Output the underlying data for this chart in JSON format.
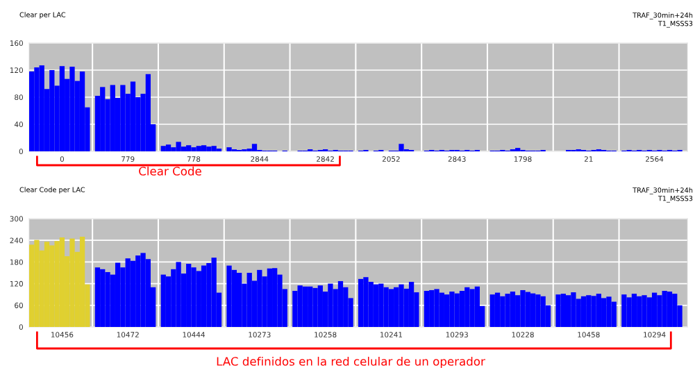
{
  "chart_data": [
    {
      "type": "bar",
      "title": "Clear per LAC",
      "subtitle": "TRAF_30min+24h\nT1_MSSS3",
      "categories": [
        null,
        null,
        null,
        null,
        null,
        null,
        "0",
        null,
        null,
        null,
        null,
        null,
        null,
        null,
        null,
        null,
        null,
        null,
        null,
        "779",
        null,
        null,
        null,
        null,
        null,
        null,
        null,
        null,
        null,
        null,
        null,
        null,
        "778",
        null,
        null,
        null,
        null,
        null,
        null,
        null,
        null,
        null,
        null,
        null,
        null,
        "2844",
        null,
        null,
        null,
        null,
        null,
        null,
        null,
        null,
        null,
        null,
        null,
        null,
        "2842",
        null,
        null,
        null,
        null,
        null,
        null,
        null,
        null,
        null,
        null,
        null,
        null,
        "2052",
        null,
        null,
        null,
        null,
        null,
        null,
        null,
        null,
        null,
        null,
        null,
        null,
        "2843",
        null,
        null,
        null,
        null,
        null,
        null,
        null,
        null,
        null,
        null,
        null,
        null,
        "1798",
        null,
        null,
        null,
        null,
        null,
        null,
        null,
        null,
        null,
        null,
        null,
        null,
        "21",
        null,
        null,
        null,
        null,
        null,
        null,
        null,
        null,
        null,
        null,
        null,
        null,
        "2564",
        null,
        null,
        null,
        null,
        null,
        null
      ],
      "series": [
        {
          "color": "#0000ff",
          "values": [
            118,
            124,
            127,
            92,
            120,
            97,
            126,
            107,
            125,
            104,
            118,
            65,
            null,
            82,
            95,
            77,
            98,
            79,
            98,
            85,
            103,
            80,
            85,
            114,
            40,
            null,
            8,
            10,
            6,
            14,
            7,
            9,
            6,
            8,
            9,
            7,
            8,
            4,
            null,
            6,
            3,
            2,
            3,
            4,
            11,
            2,
            1,
            1,
            1,
            0,
            1,
            null,
            0,
            1,
            1,
            3,
            1,
            2,
            3,
            1,
            2,
            1,
            1,
            1,
            null,
            1,
            2,
            0,
            1,
            2,
            0,
            1,
            1,
            11,
            3,
            2,
            0,
            null,
            1,
            2,
            1,
            2,
            1,
            2,
            2,
            1,
            2,
            1,
            2,
            0,
            null,
            1,
            1,
            2,
            1,
            3,
            5,
            2,
            1,
            1,
            1,
            2,
            0,
            null,
            0,
            0,
            2,
            2,
            3,
            2,
            1,
            2,
            3,
            2,
            1,
            1,
            null,
            1,
            2,
            1,
            2,
            1,
            2,
            1,
            2,
            1,
            2,
            1,
            2,
            null
          ]
        }
      ],
      "ylim": [
        0,
        160
      ],
      "yticks": [
        0,
        40,
        80,
        120,
        160
      ],
      "grid": "y",
      "annotations": [
        "Clear Code"
      ]
    },
    {
      "type": "bar",
      "title": "Clear Code per LAC",
      "subtitle": "TRAF_30min+24h\nT1_MSSS3",
      "categories": [
        null,
        null,
        null,
        null,
        null,
        null,
        "10456",
        null,
        null,
        null,
        null,
        null,
        null,
        null,
        null,
        null,
        null,
        null,
        null,
        "10472",
        null,
        null,
        null,
        null,
        null,
        null,
        null,
        null,
        null,
        null,
        null,
        null,
        "10444",
        null,
        null,
        null,
        null,
        null,
        null,
        null,
        null,
        null,
        null,
        null,
        null,
        "10273",
        null,
        null,
        null,
        null,
        null,
        null,
        null,
        null,
        null,
        null,
        null,
        null,
        "10258",
        null,
        null,
        null,
        null,
        null,
        null,
        null,
        null,
        null,
        null,
        null,
        null,
        "10241",
        null,
        null,
        null,
        null,
        null,
        null,
        null,
        null,
        null,
        null,
        null,
        null,
        "10293",
        null,
        null,
        null,
        null,
        null,
        null,
        null,
        null,
        null,
        null,
        null,
        null,
        "10228",
        null,
        null,
        null,
        null,
        null,
        null,
        null,
        null,
        null,
        null,
        null,
        null,
        "10458",
        null,
        null,
        null,
        null,
        null,
        null,
        null,
        null,
        null,
        null,
        null,
        null,
        "10294",
        null,
        null,
        null,
        null,
        null,
        null
      ],
      "series": [
        {
          "color": "#e0d030",
          "values": [
            228,
            241,
            212,
            236,
            226,
            238,
            248,
            196,
            245,
            208,
            250,
            118,
            null,
            null,
            null,
            null,
            null,
            null,
            null,
            null,
            null,
            null,
            null,
            null,
            null,
            null,
            null,
            null,
            null,
            null,
            null,
            null,
            null,
            null,
            null,
            null,
            null,
            null,
            null,
            null,
            null,
            null,
            null,
            null,
            null,
            null,
            null,
            null,
            null,
            null,
            null,
            null,
            null,
            null,
            null,
            null,
            null,
            null,
            null,
            null,
            null,
            null,
            null,
            null,
            null,
            null,
            null,
            null,
            null,
            null,
            null,
            null,
            null,
            null,
            null,
            null,
            null,
            null,
            null,
            null,
            null,
            null,
            null,
            null,
            null,
            null,
            null,
            null,
            null,
            null,
            null,
            null,
            null,
            null,
            null,
            null,
            null,
            null,
            null,
            null,
            null,
            null,
            null,
            null,
            null,
            null,
            null,
            null,
            null,
            null,
            null,
            null,
            null,
            null,
            null,
            null,
            null,
            null,
            null,
            null,
            null,
            null,
            null,
            null,
            null,
            null,
            null,
            null,
            null,
            null
          ]
        },
        {
          "color": "#0000ff",
          "values": [
            null,
            null,
            null,
            null,
            null,
            null,
            null,
            null,
            null,
            null,
            null,
            null,
            null,
            165,
            160,
            152,
            145,
            178,
            165,
            190,
            183,
            198,
            205,
            188,
            110,
            null,
            145,
            140,
            160,
            180,
            148,
            175,
            165,
            155,
            170,
            177,
            192,
            95,
            null,
            170,
            158,
            150,
            120,
            150,
            128,
            158,
            140,
            162,
            163,
            145,
            105,
            null,
            100,
            115,
            112,
            112,
            108,
            115,
            98,
            120,
            105,
            127,
            110,
            80,
            null,
            133,
            138,
            125,
            118,
            120,
            110,
            105,
            110,
            118,
            106,
            125,
            96,
            null,
            100,
            102,
            105,
            95,
            90,
            98,
            93,
            100,
            110,
            105,
            112,
            58,
            null,
            90,
            95,
            85,
            92,
            98,
            88,
            102,
            97,
            93,
            90,
            85,
            60,
            null,
            90,
            92,
            88,
            96,
            78,
            85,
            88,
            86,
            92,
            80,
            84,
            70,
            null,
            90,
            82,
            92,
            85,
            88,
            82,
            95,
            88,
            100,
            98,
            92,
            60,
            null
          ]
        }
      ],
      "ylim": [
        0,
        300
      ],
      "yticks": [
        0,
        60,
        120,
        180,
        240,
        300
      ],
      "grid": "y",
      "annotations": [
        "LAC definidos en la red celular de un operador"
      ]
    }
  ]
}
